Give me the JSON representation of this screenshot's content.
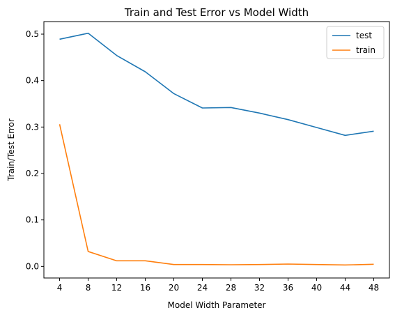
{
  "chart_data": {
    "type": "line",
    "title": "Train and Test Error vs Model Width",
    "xlabel": "Model Width Parameter",
    "ylabel": "Train/Test Error",
    "x": [
      4,
      8,
      12,
      16,
      20,
      24,
      28,
      32,
      36,
      40,
      44,
      48
    ],
    "xticks": [
      "4",
      "8",
      "12",
      "16",
      "20",
      "24",
      "28",
      "32",
      "36",
      "40",
      "44",
      "48"
    ],
    "yticks": [
      "0.0",
      "0.1",
      "0.2",
      "0.3",
      "0.4",
      "0.5"
    ],
    "xlim": [
      1.8,
      50.2
    ],
    "ylim": [
      -0.025,
      0.527
    ],
    "grid": false,
    "legend_position": "top-right",
    "series": [
      {
        "name": "test",
        "color": "#1f77b4",
        "values": [
          0.489,
          0.502,
          0.454,
          0.419,
          0.372,
          0.341,
          0.342,
          0.33,
          0.316,
          0.299,
          0.282,
          0.291
        ]
      },
      {
        "name": "train",
        "color": "#ff7f0e",
        "values": [
          0.306,
          0.032,
          0.012,
          0.012,
          0.004,
          0.004,
          0.0035,
          0.004,
          0.005,
          0.004,
          0.003,
          0.0045
        ]
      }
    ]
  }
}
